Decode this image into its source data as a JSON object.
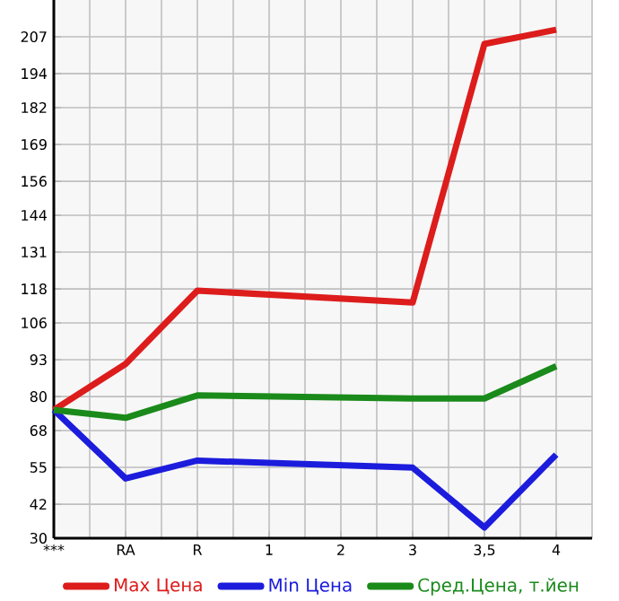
{
  "chart_data": {
    "type": "line",
    "categories": [
      "***",
      "RA",
      "R",
      "1",
      "2",
      "3",
      "3,5",
      "4"
    ],
    "series": [
      {
        "name": "Max Цена",
        "color": "#dd1c1c",
        "values": [
          75.3,
          91.5,
          117.4,
          null,
          null,
          113.2,
          204.5,
          209.5
        ]
      },
      {
        "name": "Min Цена",
        "color": "#1c1cdd",
        "values": [
          75.3,
          51.1,
          57.4,
          null,
          null,
          54.9,
          33.8,
          59.5
        ]
      },
      {
        "name": "Сред.Цена, т.йен",
        "color": "#1a8a1a",
        "values": [
          75.3,
          72.5,
          80.4,
          null,
          null,
          79.3,
          79.3,
          90.7
        ]
      }
    ],
    "ylim": [
      30,
      220
    ],
    "yticks": [
      30,
      42,
      55,
      68,
      80,
      93,
      106,
      118,
      131,
      144,
      156,
      169,
      182,
      194,
      207
    ],
    "grid": true,
    "legend": "bottom",
    "marker": "none",
    "line_style": "solid"
  }
}
